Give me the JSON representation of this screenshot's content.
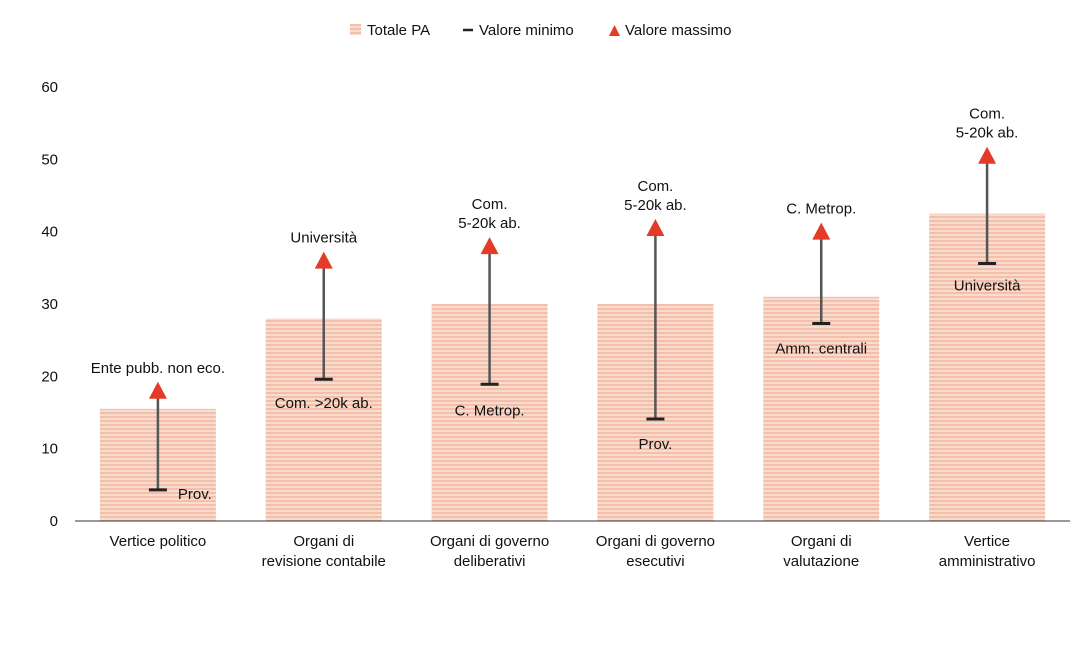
{
  "chart_data": {
    "type": "bar",
    "categories": [
      [
        "Vertice politico"
      ],
      [
        "Organi di",
        "revisione contabile"
      ],
      [
        "Organi di governo",
        "deliberativi"
      ],
      [
        "Organi di governo",
        "esecutivi"
      ],
      [
        "Organi di",
        "valutazione"
      ],
      [
        "Vertice",
        "amministrativo"
      ]
    ],
    "series": [
      {
        "name": "Totale PA",
        "values": [
          15.5,
          28,
          30,
          30,
          31,
          42.5
        ]
      },
      {
        "name": "Valore minimo",
        "values": [
          4.3,
          19.6,
          18.9,
          14.1,
          27.3,
          35.6
        ],
        "labels": [
          [
            "Prov."
          ],
          [
            "Com. >20k ab."
          ],
          [
            "C. Metrop."
          ],
          [
            "Prov."
          ],
          [
            "Amm. centrali"
          ],
          [
            "Università"
          ]
        ]
      },
      {
        "name": "Valore massimo",
        "values": [
          18,
          36,
          38,
          40.5,
          40,
          50.5
        ],
        "labels": [
          [
            "Ente pubb. non eco."
          ],
          [
            "Università"
          ],
          [
            "Com.",
            "5-20k ab."
          ],
          [
            "Com.",
            "5-20k ab."
          ],
          [
            "C. Metrop."
          ],
          [
            "Com.",
            "5-20k ab."
          ]
        ]
      }
    ],
    "yticks": [
      0,
      10,
      20,
      30,
      40,
      50,
      60
    ],
    "ylim": [
      0,
      60
    ],
    "legend": "top-center",
    "grid": false,
    "colors": {
      "bar": "#f2b8a0",
      "bar_stripe": "#f8d8ca",
      "min": "#222222",
      "max": "#e53a27",
      "whisker": "#555555",
      "axis": "#333333"
    }
  }
}
